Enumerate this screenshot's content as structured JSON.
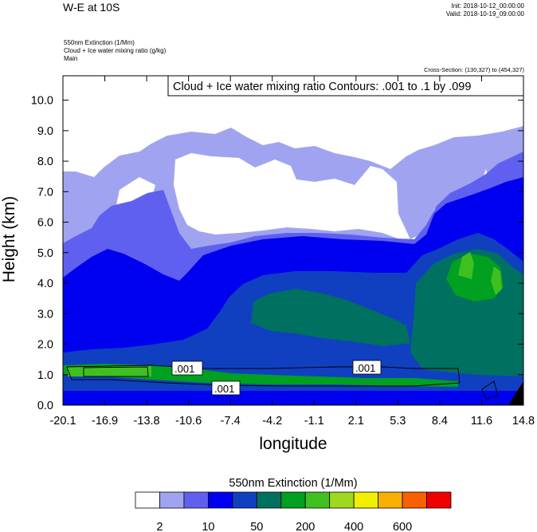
{
  "header": {
    "title": "W-E at 10S",
    "init": "Init: 2018-10-12_00:00:00",
    "valid": "Valid: 2018-10-19_09:00:00",
    "subtitle_lines": [
      "550nm Extinction   (1/Mm)",
      "Cloud + Ice water mixing ratio   (g/kg)",
      "Main"
    ],
    "cross_section": "Cross-Section: (130,327) to (454,327)"
  },
  "chart_data": {
    "type": "contour",
    "contour_label_box": "Cloud + Ice water mixing ratio Contours: .001 to .1 by .099",
    "contour_labels": [
      ".001",
      ".001",
      ".001"
    ],
    "xlabel": "longitude",
    "ylabel": "Height (km)",
    "x_ticks": [
      "-20.1",
      "-16.9",
      "-13.8",
      "-10.6",
      "-7.4",
      "-4.2",
      "-1.1",
      "2.1",
      "5.3",
      "8.4",
      "11.6",
      "14.8"
    ],
    "y_ticks": [
      "0.0",
      "1.0",
      "2.0",
      "3.0",
      "4.0",
      "5.0",
      "6.0",
      "7.0",
      "8.0",
      "9.0",
      "10.0"
    ],
    "xlim": [
      -20.1,
      14.8
    ],
    "ylim": [
      0,
      10.8
    ],
    "colorbar": {
      "title": "550nm Extinction  (1/Mm)",
      "tick_labels": [
        "2",
        "10",
        "50",
        "200",
        "400",
        "600"
      ],
      "colors": [
        "#ffffff",
        "#a0a4f0",
        "#6060f0",
        "#0000f0",
        "#1040c0",
        "#007060",
        "#00a020",
        "#40c020",
        "#a0d820",
        "#f0f000",
        "#f8b000",
        "#f86000",
        "#f00000"
      ]
    }
  }
}
